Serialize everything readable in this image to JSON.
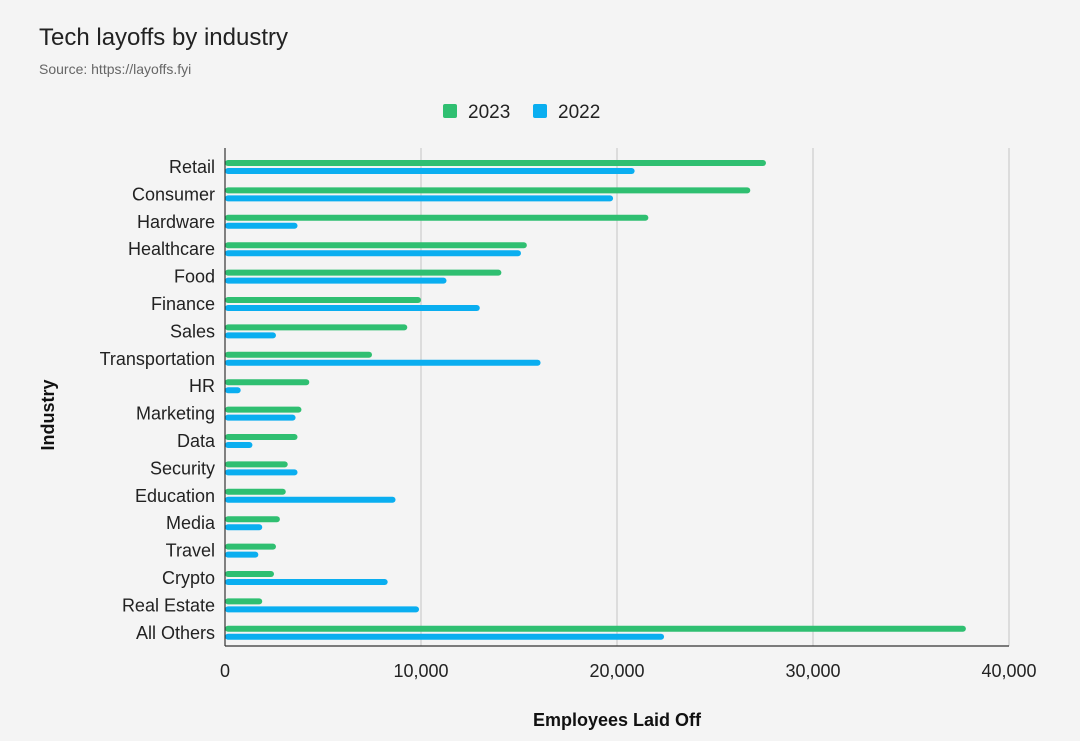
{
  "title": "Tech layoffs by industry",
  "subtitle": "Source: https://layoffs.fyi",
  "colors": {
    "series_2023": "#2fbf71",
    "series_2022": "#0aaef0",
    "grid": "#cccccc",
    "axis": "#333333"
  },
  "chart_data": {
    "type": "bar",
    "orientation": "horizontal",
    "title": "Tech layoffs by industry",
    "subtitle": "Source: https://layoffs.fyi",
    "xlabel": "Employees Laid Off",
    "ylabel": "Industry",
    "xlim": [
      0,
      40000
    ],
    "x_ticks": [
      0,
      10000,
      20000,
      30000,
      40000
    ],
    "x_tick_labels": [
      "0",
      "10,000",
      "20,000",
      "30,000",
      "40,000"
    ],
    "grid": true,
    "legend_position": "top-center",
    "categories": [
      "Retail",
      "Consumer",
      "Hardware",
      "Healthcare",
      "Food",
      "Finance",
      "Sales",
      "Transportation",
      "HR",
      "Marketing",
      "Data",
      "Security",
      "Education",
      "Media",
      "Travel",
      "Crypto",
      "Real Estate",
      "All Others"
    ],
    "series": [
      {
        "name": "2023",
        "color": "#2fbf71",
        "values": [
          27600,
          26800,
          21600,
          15400,
          14100,
          10000,
          9300,
          7500,
          4300,
          3900,
          3700,
          3200,
          3100,
          2800,
          2600,
          2500,
          1900,
          37800
        ]
      },
      {
        "name": "2022",
        "color": "#0aaef0",
        "values": [
          20900,
          19800,
          3700,
          15100,
          11300,
          13000,
          2600,
          16100,
          800,
          3600,
          1400,
          3700,
          8700,
          1900,
          1700,
          8300,
          9900,
          22400
        ]
      }
    ]
  }
}
